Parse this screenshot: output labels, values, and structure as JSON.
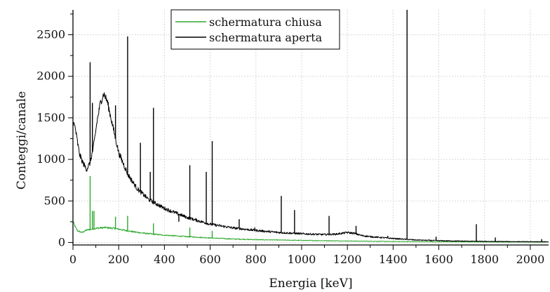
{
  "chart_data": {
    "type": "line",
    "xlabel": "Energia [keV]",
    "ylabel": "Conteggi/canale",
    "xlim": [
      0,
      2080
    ],
    "ylim": [
      -30,
      2800
    ],
    "xticks": [
      0,
      200,
      400,
      600,
      800,
      1000,
      1200,
      1400,
      1600,
      1800,
      2000
    ],
    "yticks": [
      0,
      500,
      1000,
      1500,
      2000,
      2500
    ],
    "grid": true,
    "legend_position": "top-center",
    "series": [
      {
        "name": "schermatura chiusa",
        "color": "#2ea82e",
        "baseline": [
          [
            0,
            260
          ],
          [
            8,
            200
          ],
          [
            20,
            140
          ],
          [
            40,
            120
          ],
          [
            60,
            150
          ],
          [
            80,
            160
          ],
          [
            100,
            170
          ],
          [
            140,
            180
          ],
          [
            180,
            170
          ],
          [
            220,
            150
          ],
          [
            260,
            130
          ],
          [
            300,
            115
          ],
          [
            350,
            100
          ],
          [
            400,
            88
          ],
          [
            500,
            70
          ],
          [
            600,
            55
          ],
          [
            700,
            42
          ],
          [
            800,
            34
          ],
          [
            1000,
            25
          ],
          [
            1200,
            18
          ],
          [
            1400,
            12
          ],
          [
            1600,
            8
          ],
          [
            1800,
            6
          ],
          [
            2080,
            4
          ]
        ],
        "peaks": [
          [
            75,
            800
          ],
          [
            85,
            380
          ],
          [
            92,
            380
          ],
          [
            186,
            310
          ],
          [
            239,
            320
          ],
          [
            352,
            230
          ],
          [
            511,
            180
          ],
          [
            609,
            140
          ]
        ]
      },
      {
        "name": "schermatura aperta",
        "color": "#000000",
        "baseline": [
          [
            0,
            1450
          ],
          [
            10,
            1380
          ],
          [
            20,
            1200
          ],
          [
            30,
            1050
          ],
          [
            45,
            950
          ],
          [
            60,
            880
          ],
          [
            75,
            960
          ],
          [
            90,
            1150
          ],
          [
            105,
            1450
          ],
          [
            120,
            1680
          ],
          [
            135,
            1790
          ],
          [
            150,
            1700
          ],
          [
            170,
            1450
          ],
          [
            200,
            1080
          ],
          [
            240,
            820
          ],
          [
            280,
            650
          ],
          [
            330,
            520
          ],
          [
            400,
            410
          ],
          [
            500,
            300
          ],
          [
            600,
            220
          ],
          [
            700,
            175
          ],
          [
            800,
            145
          ],
          [
            900,
            120
          ],
          [
            1000,
            105
          ],
          [
            1100,
            95
          ],
          [
            1150,
            100
          ],
          [
            1200,
            120
          ],
          [
            1230,
            110
          ],
          [
            1260,
            85
          ],
          [
            1300,
            70
          ],
          [
            1400,
            48
          ],
          [
            1500,
            30
          ],
          [
            1600,
            22
          ],
          [
            1700,
            17
          ],
          [
            1800,
            13
          ],
          [
            2000,
            9
          ],
          [
            2080,
            8
          ]
        ],
        "peaks": [
          [
            75,
            2170
          ],
          [
            85,
            1680
          ],
          [
            186,
            1650
          ],
          [
            239,
            2480
          ],
          [
            295,
            1200
          ],
          [
            338,
            850
          ],
          [
            352,
            1620
          ],
          [
            463,
            250
          ],
          [
            511,
            930
          ],
          [
            583,
            850
          ],
          [
            609,
            1220
          ],
          [
            727,
            280
          ],
          [
            795,
            180
          ],
          [
            911,
            560
          ],
          [
            969,
            390
          ],
          [
            1120,
            320
          ],
          [
            1238,
            200
          ],
          [
            1377,
            80
          ],
          [
            1461,
            2800
          ],
          [
            1588,
            70
          ],
          [
            1764,
            220
          ],
          [
            1847,
            60
          ],
          [
            2050,
            40
          ]
        ]
      }
    ]
  }
}
